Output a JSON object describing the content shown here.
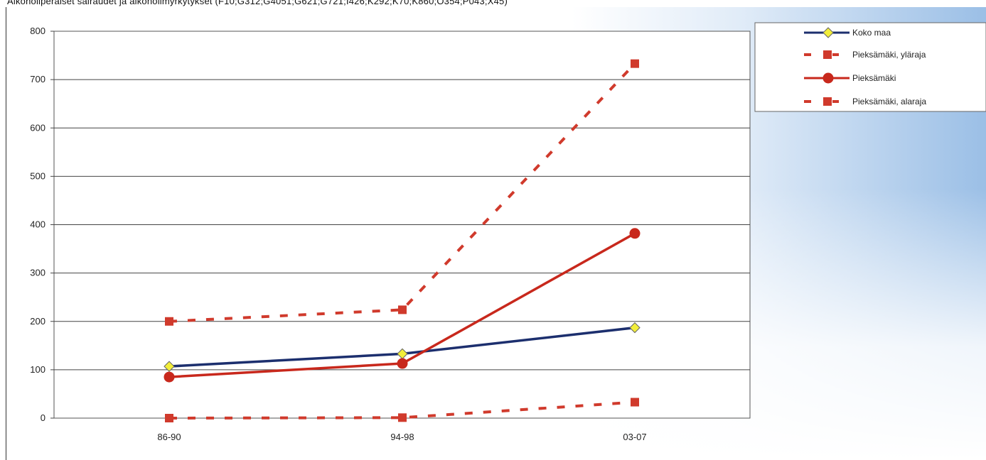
{
  "title": "Alkoholiperäiset sairaudet ja alkoholimyrkytykset (F10;G312;G4051;G621;G721;I426;K292;K70;K860;O354;P043;X45)",
  "chart_data": {
    "type": "line",
    "categories": [
      "86-90",
      "94-98",
      "03-07"
    ],
    "ylim": [
      0,
      800
    ],
    "yticks": [
      0,
      100,
      200,
      300,
      400,
      500,
      600,
      700,
      800
    ],
    "ytick_labels": [
      "0",
      "100",
      "200",
      "300",
      "400",
      "500",
      "600",
      "700",
      "800"
    ],
    "grid": true,
    "legend_position": "top-right",
    "series": [
      {
        "name": "Koko maa",
        "values": [
          107,
          133,
          187
        ],
        "color": "#1c2f6e",
        "marker": "diamond",
        "marker_color": "#f2ee3a",
        "dashed": false
      },
      {
        "name": "Pieksämäki, yläraja",
        "values": [
          200,
          224,
          733
        ],
        "color": "#d03a2c",
        "marker": "square",
        "marker_color": "#d03a2c",
        "dashed": true
      },
      {
        "name": "Pieksämäki",
        "values": [
          85,
          113,
          382
        ],
        "color": "#c8281c",
        "marker": "circle",
        "marker_color": "#c8281c",
        "dashed": false
      },
      {
        "name": "Pieksämäki, alaraja",
        "values": [
          0,
          1,
          33
        ],
        "color": "#d03a2c",
        "marker": "square",
        "marker_color": "#d03a2c",
        "dashed": true
      }
    ]
  }
}
